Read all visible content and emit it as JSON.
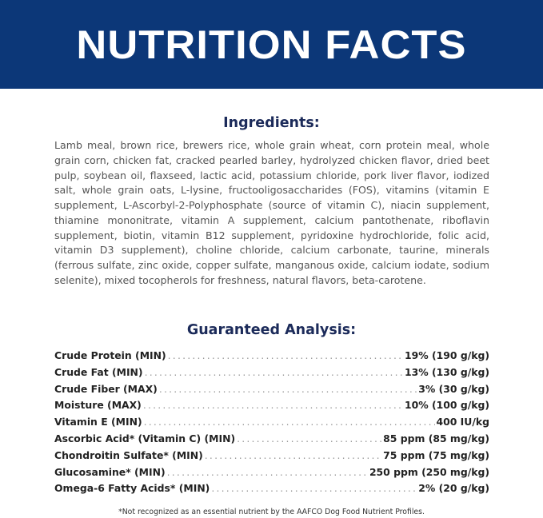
{
  "header": {
    "title": "NUTRITION FACTS",
    "background": "#0c3778"
  },
  "ingredients": {
    "title": "Ingredients:",
    "text": "Lamb meal, brown rice, brewers rice, whole grain wheat, corn protein meal, whole grain corn, chicken fat, cracked pearled barley, hydrolyzed chicken flavor, dried beet pulp, soybean oil, flaxseed, lactic acid, potassium chloride, pork liver flavor, iodized salt, whole grain oats, L-lysine, fructooligosaccharides (FOS), vitamins (vitamin E supplement, L-Ascorbyl-2-Polyphosphate (source of vitamin C), niacin supplement, thiamine mononitrate, vitamin A supplement, calcium pantothenate, riboflavin supplement, biotin, vitamin B12 supplement, pyridoxine hydrochloride, folic acid, vitamin D3 supplement), choline chloride, calcium carbonate, taurine, minerals (ferrous sulfate, zinc oxide, copper sulfate, manganous oxide, calcium iodate, sodium selenite), mixed tocopherols for freshness, natural flavors, beta-carotene."
  },
  "analysis": {
    "title": "Guaranteed Analysis:",
    "rows": [
      {
        "label": "Crude Protein (MIN)",
        "value": "19% (190 g/kg)"
      },
      {
        "label": "Crude Fat (MIN)",
        "value": "13% (130 g/kg)"
      },
      {
        "label": "Crude Fiber (MAX)",
        "value": "3% (30 g/kg)"
      },
      {
        "label": "Moisture (MAX)",
        "value": "10% (100 g/kg)"
      },
      {
        "label": "Vitamin E (MIN)",
        "value": "400 IU/kg"
      },
      {
        "label": "Ascorbic Acid* (Vitamin C) (MIN)",
        "value": "85 ppm (85 mg/kg)"
      },
      {
        "label": "Chondroitin Sulfate* (MIN)",
        "value": "75 ppm (75 mg/kg)"
      },
      {
        "label": "Glucosamine* (MIN)",
        "value": "250 ppm (250 mg/kg)"
      },
      {
        "label": "Omega-6 Fatty Acids* (MIN)",
        "value": "2% (20 g/kg)"
      }
    ]
  },
  "footnote": "*Not recognized as an essential nutrient by the AAFCO Dog Food Nutrient Profiles."
}
